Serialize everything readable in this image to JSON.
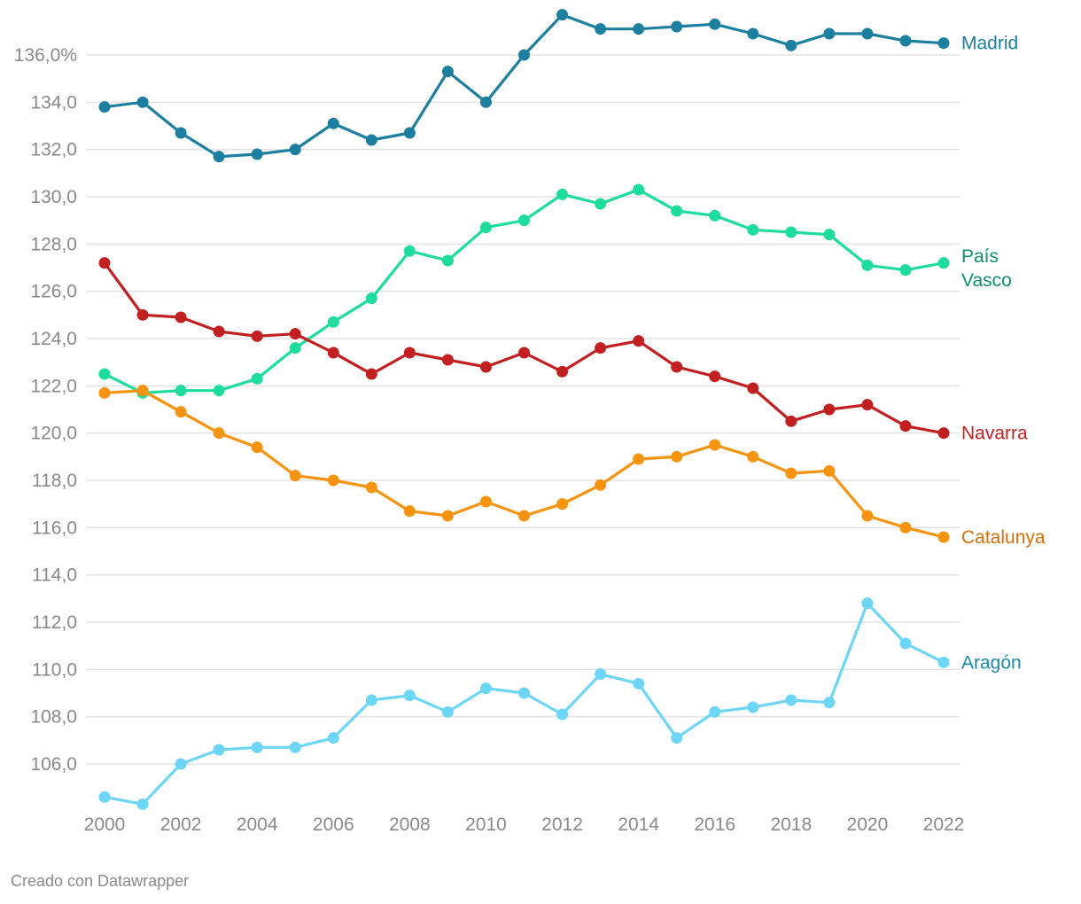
{
  "chart_data": {
    "type": "line",
    "title": "",
    "xlabel": "",
    "ylabel": "",
    "x": [
      2000,
      2001,
      2002,
      2003,
      2004,
      2005,
      2006,
      2007,
      2008,
      2009,
      2010,
      2011,
      2012,
      2013,
      2014,
      2015,
      2016,
      2017,
      2018,
      2019,
      2020,
      2021,
      2022
    ],
    "x_ticks": [
      "2000",
      "2002",
      "2004",
      "2006",
      "2008",
      "2010",
      "2012",
      "2014",
      "2016",
      "2018",
      "2020",
      "2022"
    ],
    "y_ticks": [
      {
        "value": 106,
        "label": "106,0"
      },
      {
        "value": 108,
        "label": "108,0"
      },
      {
        "value": 110,
        "label": "110,0"
      },
      {
        "value": 112,
        "label": "112,0"
      },
      {
        "value": 114,
        "label": "114,0"
      },
      {
        "value": 116,
        "label": "116,0"
      },
      {
        "value": 118,
        "label": "118,0"
      },
      {
        "value": 120,
        "label": "120,0"
      },
      {
        "value": 122,
        "label": "122,0"
      },
      {
        "value": 124,
        "label": "124,0"
      },
      {
        "value": 126,
        "label": "126,0"
      },
      {
        "value": 128,
        "label": "128,0"
      },
      {
        "value": 130,
        "label": "130,0"
      },
      {
        "value": 132,
        "label": "132,0"
      },
      {
        "value": 134,
        "label": "134,0"
      },
      {
        "value": 136,
        "label": "136,0%"
      }
    ],
    "ylim": [
      104.2,
      137.8
    ],
    "grid": true,
    "series": [
      {
        "name": "Madrid",
        "label_lines": [
          "Madrid"
        ],
        "color": "#1d7fa0",
        "label_color": "#1d7fa0",
        "values": [
          133.8,
          134.0,
          132.7,
          131.7,
          131.8,
          132.0,
          133.1,
          132.4,
          132.7,
          135.3,
          134.0,
          136.0,
          137.7,
          137.1,
          137.1,
          137.2,
          137.3,
          136.9,
          136.4,
          136.9,
          136.9,
          136.6,
          136.5
        ]
      },
      {
        "name": "País Vasco",
        "label_lines": [
          "País",
          "Vasco"
        ],
        "color": "#1edc9c",
        "label_color": "#10906a",
        "values": [
          122.5,
          121.7,
          121.8,
          121.8,
          122.3,
          123.6,
          124.7,
          125.7,
          127.7,
          127.3,
          128.7,
          129.0,
          130.1,
          129.7,
          130.3,
          129.4,
          129.2,
          128.6,
          128.5,
          128.4,
          127.1,
          126.9,
          127.2
        ]
      },
      {
        "name": "Navarra",
        "label_lines": [
          "Navarra"
        ],
        "color": "#c21f21",
        "label_color": "#c21f21",
        "values": [
          127.2,
          125.0,
          124.9,
          124.3,
          124.1,
          124.2,
          123.4,
          122.5,
          123.4,
          123.1,
          122.8,
          123.4,
          122.6,
          123.6,
          123.9,
          122.8,
          122.4,
          121.9,
          120.5,
          121.0,
          121.2,
          120.3,
          120.0
        ]
      },
      {
        "name": "Catalunya",
        "label_lines": [
          "Catalunya"
        ],
        "color": "#f6930f",
        "label_color": "#d2700a",
        "values": [
          121.7,
          121.8,
          120.9,
          120.0,
          119.4,
          118.2,
          118.0,
          117.7,
          116.7,
          116.5,
          117.1,
          116.5,
          117.0,
          117.8,
          118.9,
          119.0,
          119.5,
          119.0,
          118.3,
          118.4,
          116.5,
          116.0,
          115.6
        ]
      },
      {
        "name": "Aragón",
        "label_lines": [
          "Aragón"
        ],
        "color": "#6dd6f6",
        "label_color": "#1d8aa5",
        "values": [
          104.6,
          104.3,
          106.0,
          106.6,
          106.7,
          106.7,
          107.1,
          108.7,
          108.9,
          108.2,
          109.2,
          109.0,
          108.1,
          109.8,
          109.4,
          107.1,
          108.2,
          108.4,
          108.7,
          108.6,
          112.8,
          111.1,
          110.3
        ]
      }
    ]
  },
  "footer": {
    "credit": "Creado con Datawrapper"
  }
}
